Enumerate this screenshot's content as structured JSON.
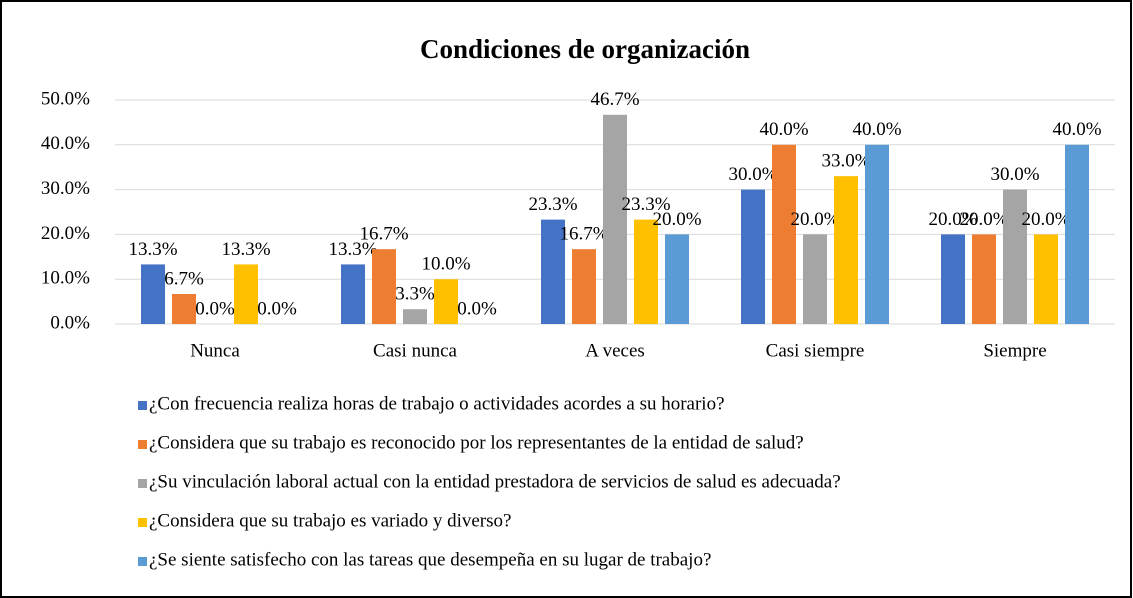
{
  "chart_data": {
    "type": "bar",
    "title": "Condiciones de organización",
    "categories": [
      "Nunca",
      "Casi nunca",
      "A veces",
      "Casi siempre",
      "Siempre"
    ],
    "series": [
      {
        "name": "¿Con frecuencia realiza horas de trabajo o actividades acordes a su horario?",
        "color": "#4472c4",
        "values": [
          13.3,
          13.3,
          23.3,
          30.0,
          20.0
        ],
        "value_labels": [
          "13.3%",
          "13.3%",
          "23.3%",
          "30.0%",
          "20.0%"
        ]
      },
      {
        "name": "¿Considera que su trabajo es reconocido por los representantes de la entidad de salud?",
        "color": "#ed7d31",
        "values": [
          6.7,
          16.7,
          16.7,
          40.0,
          20.0
        ],
        "value_labels": [
          "6.7%",
          "16.7%",
          "16.7%",
          "40.0%",
          "20.0%"
        ]
      },
      {
        "name": "¿Su vinculación laboral actual con la entidad prestadora de servicios de salud es adecuada?",
        "color": "#a5a5a5",
        "values": [
          0.0,
          3.3,
          46.7,
          20.0,
          30.0
        ],
        "value_labels": [
          "0.0%",
          "3.3%",
          "46.7%",
          "20.0%",
          "30.0%"
        ]
      },
      {
        "name": "¿Considera que su trabajo es variado y diverso?",
        "color": "#ffc000",
        "values": [
          13.3,
          10.0,
          23.3,
          33.0,
          20.0
        ],
        "value_labels": [
          "13.3%",
          "10.0%",
          "23.3%",
          "33.0%",
          "20.0%"
        ]
      },
      {
        "name": "¿Se siente satisfecho con las tareas que desempeña en su lugar de trabajo?",
        "color": "#5b9bd5",
        "values": [
          0.0,
          0.0,
          20.0,
          40.0,
          40.0
        ],
        "value_labels": [
          "0.0%",
          "0.0%",
          "20.0%",
          "40.0%",
          "40.0%"
        ]
      }
    ],
    "ylim": [
      0,
      50
    ],
    "yticks": [
      {
        "value": 0,
        "label": "0.0%"
      },
      {
        "value": 10,
        "label": "10.0%"
      },
      {
        "value": 20,
        "label": "20.0%"
      },
      {
        "value": 30,
        "label": "30.0%"
      },
      {
        "value": 40,
        "label": "40.0%"
      },
      {
        "value": 50,
        "label": "50.0%"
      }
    ],
    "grid": true
  }
}
